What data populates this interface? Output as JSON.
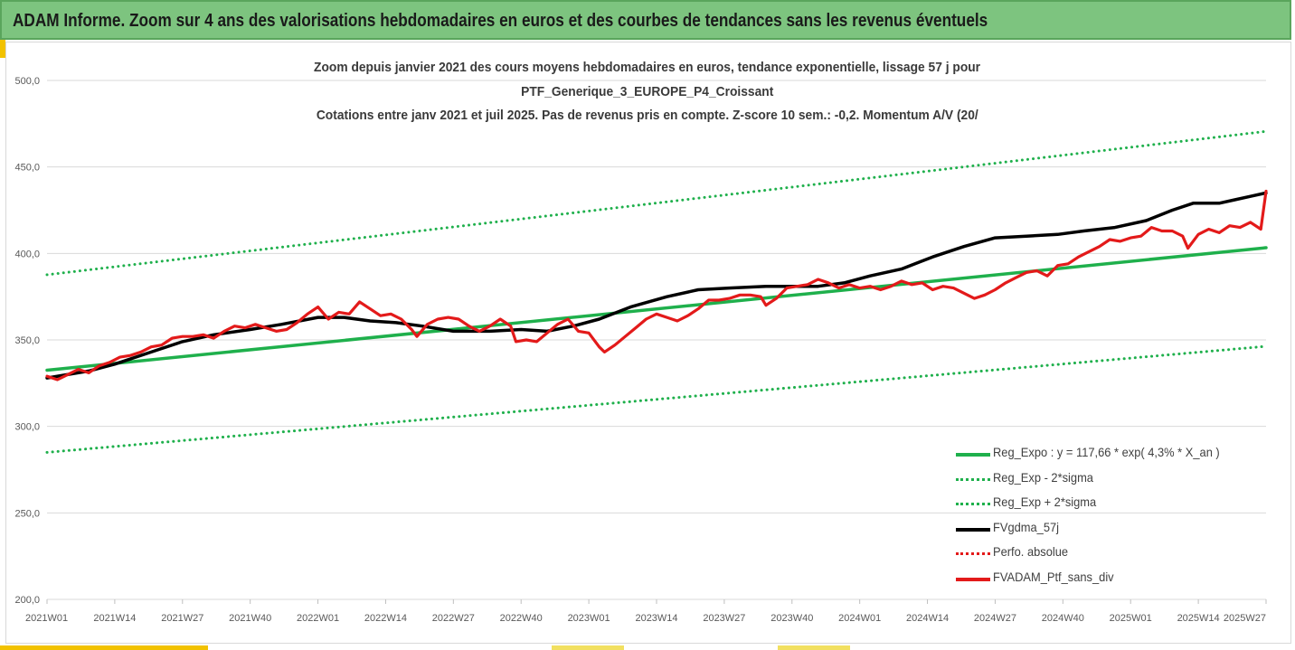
{
  "header": {
    "title": "ADAM Informe. Zoom sur 4 ans des valorisations hebdomadaires en euros et des courbes de tendances sans les revenus éventuels"
  },
  "chart_data": {
    "type": "line",
    "title": [
      "Zoom depuis janvier 2021 des cours moyens hebdomadaires  en euros, tendance exponentielle, lissage 57 j pour",
      "PTF_Generique_3_EUROPE_P4_Croissant",
      "Cotations entre janv 2021 et juil 2025. Pas de revenus pris en compte. Z-score 10 sem.: -0,2. Momentum A/V (20/"
    ],
    "xlabel": "",
    "ylabel": "",
    "ylim": [
      200,
      500
    ],
    "y_ticks": [
      "200,0",
      "250,0",
      "300,0",
      "350,0",
      "400,0",
      "450,0",
      "500,0"
    ],
    "x_ticks": [
      "2021W01",
      "2021W14",
      "2021W27",
      "2021W40",
      "2022W01",
      "2022W14",
      "2022W27",
      "2022W40",
      "2023W01",
      "2023W14",
      "2023W27",
      "2023W40",
      "2024W01",
      "2024W14",
      "2024W27",
      "2024W40",
      "2025W01",
      "2025W14",
      "2025W27"
    ],
    "x_range_weeks": [
      0,
      234
    ],
    "grid": "horizontal",
    "legend_position": "bottom-right",
    "series": [
      {
        "name": "Reg_Expo : y = 117,66 * exp( 4,3% *  X_an )",
        "style": "solid",
        "color": "#1fb04c",
        "points": [
          [
            0,
            332.5
          ],
          [
            234,
            403.3
          ]
        ]
      },
      {
        "name": "Reg_Exp - 2*sigma",
        "style": "dotted",
        "color": "#1fb04c",
        "points": [
          [
            0,
            285.0
          ],
          [
            234,
            346.3
          ]
        ]
      },
      {
        "name": "Reg_Exp + 2*sigma",
        "style": "dotted",
        "color": "#1fb04c",
        "points": [
          [
            0,
            387.7
          ],
          [
            234,
            470.6
          ]
        ]
      },
      {
        "name": "FVgdma_57j",
        "style": "solid",
        "color": "#000000",
        "points": [
          [
            0,
            328
          ],
          [
            8,
            332
          ],
          [
            13,
            336
          ],
          [
            20,
            343
          ],
          [
            26,
            349
          ],
          [
            32,
            353
          ],
          [
            39,
            356
          ],
          [
            45,
            359
          ],
          [
            52,
            363
          ],
          [
            57,
            363
          ],
          [
            62,
            361
          ],
          [
            67,
            360
          ],
          [
            72,
            358
          ],
          [
            78,
            355
          ],
          [
            85,
            355
          ],
          [
            91,
            356
          ],
          [
            96,
            355
          ],
          [
            101,
            358
          ],
          [
            106,
            362
          ],
          [
            112,
            369
          ],
          [
            119,
            375
          ],
          [
            125,
            379
          ],
          [
            131,
            380
          ],
          [
            138,
            381
          ],
          [
            143,
            381
          ],
          [
            148,
            381
          ],
          [
            153,
            383
          ],
          [
            158,
            387
          ],
          [
            164,
            391
          ],
          [
            170,
            398
          ],
          [
            176,
            404
          ],
          [
            182,
            409
          ],
          [
            188,
            410
          ],
          [
            194,
            411
          ],
          [
            199,
            413
          ],
          [
            205,
            415
          ],
          [
            211,
            419
          ],
          [
            216,
            425
          ],
          [
            220,
            429
          ],
          [
            225,
            429
          ],
          [
            228,
            431
          ],
          [
            231,
            433
          ],
          [
            234,
            435
          ]
        ]
      },
      {
        "name": "Perfo. absolue",
        "style": "dotted",
        "color": "#e31a1a",
        "points": []
      },
      {
        "name": "FVADAM_Ptf_sans_div",
        "style": "solid",
        "color": "#e31a1a",
        "points": [
          [
            0,
            329
          ],
          [
            2,
            327
          ],
          [
            4,
            330
          ],
          [
            6,
            333
          ],
          [
            8,
            331
          ],
          [
            10,
            335
          ],
          [
            12,
            337
          ],
          [
            14,
            340
          ],
          [
            16,
            341
          ],
          [
            18,
            343
          ],
          [
            20,
            346
          ],
          [
            22,
            347
          ],
          [
            24,
            351
          ],
          [
            26,
            352
          ],
          [
            28,
            352
          ],
          [
            30,
            353
          ],
          [
            32,
            351
          ],
          [
            34,
            355
          ],
          [
            36,
            358
          ],
          [
            38,
            357
          ],
          [
            40,
            359
          ],
          [
            42,
            357
          ],
          [
            44,
            355
          ],
          [
            46,
            356
          ],
          [
            48,
            360
          ],
          [
            50,
            365
          ],
          [
            52,
            369
          ],
          [
            54,
            362
          ],
          [
            56,
            366
          ],
          [
            58,
            365
          ],
          [
            60,
            372
          ],
          [
            62,
            368
          ],
          [
            64,
            364
          ],
          [
            66,
            365
          ],
          [
            68,
            362
          ],
          [
            70,
            356
          ],
          [
            71,
            352
          ],
          [
            73,
            359
          ],
          [
            75,
            362
          ],
          [
            77,
            363
          ],
          [
            79,
            362
          ],
          [
            81,
            358
          ],
          [
            83,
            355
          ],
          [
            85,
            358
          ],
          [
            87,
            362
          ],
          [
            89,
            358
          ],
          [
            90,
            349
          ],
          [
            92,
            350
          ],
          [
            94,
            349
          ],
          [
            96,
            354
          ],
          [
            98,
            359
          ],
          [
            100,
            362
          ],
          [
            102,
            355
          ],
          [
            104,
            354
          ],
          [
            106,
            346
          ],
          [
            107,
            343
          ],
          [
            109,
            347
          ],
          [
            111,
            352
          ],
          [
            113,
            357
          ],
          [
            115,
            362
          ],
          [
            117,
            365
          ],
          [
            119,
            363
          ],
          [
            121,
            361
          ],
          [
            123,
            364
          ],
          [
            125,
            368
          ],
          [
            127,
            373
          ],
          [
            129,
            373
          ],
          [
            131,
            374
          ],
          [
            133,
            376
          ],
          [
            135,
            376
          ],
          [
            137,
            375
          ],
          [
            138,
            370
          ],
          [
            140,
            374
          ],
          [
            142,
            380
          ],
          [
            144,
            381
          ],
          [
            146,
            382
          ],
          [
            148,
            385
          ],
          [
            150,
            383
          ],
          [
            152,
            380
          ],
          [
            154,
            382
          ],
          [
            156,
            380
          ],
          [
            158,
            381
          ],
          [
            160,
            379
          ],
          [
            162,
            381
          ],
          [
            164,
            384
          ],
          [
            166,
            382
          ],
          [
            168,
            383
          ],
          [
            170,
            379
          ],
          [
            172,
            381
          ],
          [
            174,
            380
          ],
          [
            176,
            377
          ],
          [
            178,
            374
          ],
          [
            180,
            376
          ],
          [
            182,
            379
          ],
          [
            184,
            383
          ],
          [
            186,
            386
          ],
          [
            188,
            389
          ],
          [
            190,
            390
          ],
          [
            192,
            387
          ],
          [
            194,
            393
          ],
          [
            196,
            394
          ],
          [
            198,
            398
          ],
          [
            200,
            401
          ],
          [
            202,
            404
          ],
          [
            204,
            408
          ],
          [
            206,
            407
          ],
          [
            208,
            409
          ],
          [
            210,
            410
          ],
          [
            212,
            415
          ],
          [
            214,
            413
          ],
          [
            216,
            413
          ],
          [
            218,
            410
          ],
          [
            219,
            403
          ],
          [
            221,
            411
          ],
          [
            223,
            414
          ],
          [
            225,
            412
          ],
          [
            227,
            416
          ],
          [
            229,
            415
          ],
          [
            231,
            418
          ],
          [
            233,
            414
          ],
          [
            234,
            436
          ]
        ]
      }
    ]
  }
}
